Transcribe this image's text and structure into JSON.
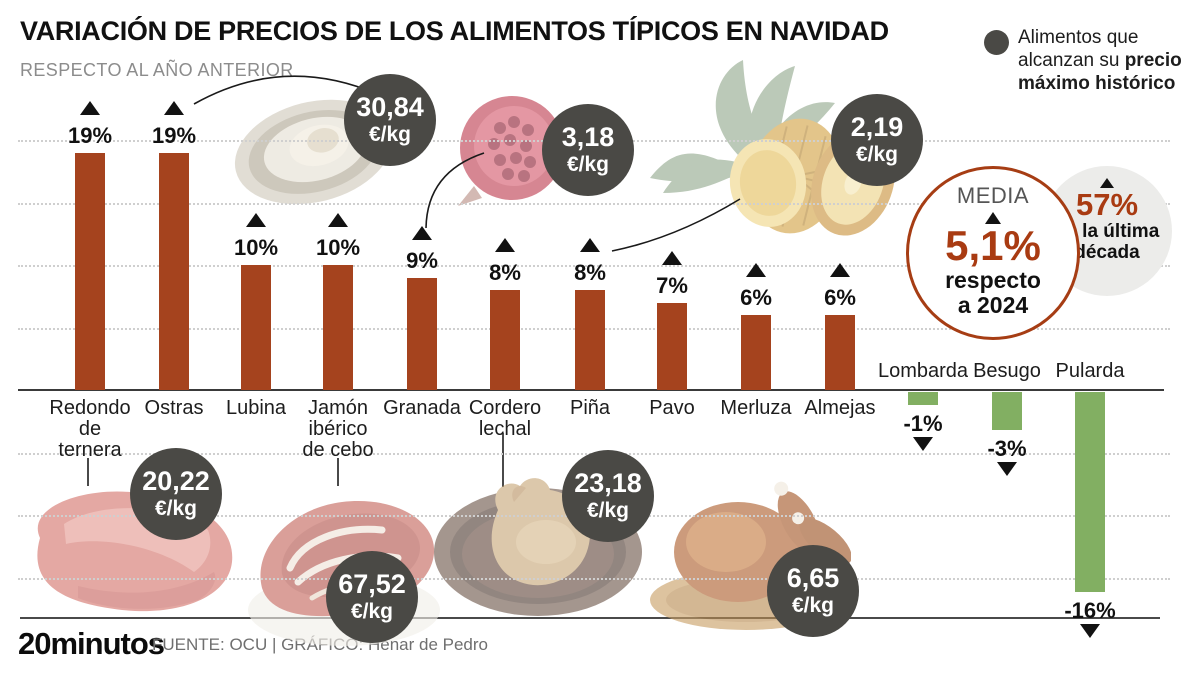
{
  "header": {
    "title": "VARIACIÓN DE PRECIOS DE LOS ALIMENTOS TÍPICOS EN NAVIDAD",
    "subtitle": "RESPECTO AL AÑO ANTERIOR"
  },
  "legend": {
    "text_normal": "Alimentos que alcanzan su ",
    "text_bold": "precio máximo histórico"
  },
  "media_circle": {
    "label": "MEDIA",
    "value": "5,1%",
    "caption_line1": "respecto",
    "caption_line2": "a 2024"
  },
  "decade_circle": {
    "value": "57%",
    "caption_line1": "en la última",
    "caption_line2": "década"
  },
  "footer": {
    "logo": "20minutos",
    "source": "FUENTE: OCU  |  GRÁFICO: Henar de Pedro"
  },
  "colors": {
    "positive_bar": "#a5431e",
    "negative_bar": "#82af62",
    "badge_bg": "#4a4945",
    "accent_rust": "#a93b12"
  },
  "chart_data": {
    "type": "bar",
    "title": "Variación de precios de los alimentos típicos en Navidad",
    "subtitle": "Respecto al año anterior",
    "unit": "%",
    "ylim": [
      -16,
      20
    ],
    "grid": true,
    "gridlines_pct": [
      20,
      15,
      10,
      5,
      -5,
      -10,
      -15
    ],
    "categories": [
      "Redondo de ternera",
      "Ostras",
      "Lubina",
      "Jamón ibérico de cebo",
      "Granada",
      "Cordero lechal",
      "Piña",
      "Pavo",
      "Merluza",
      "Almejas",
      "Lombarda",
      "Besugo",
      "Pularda"
    ],
    "values": [
      19,
      19,
      10,
      10,
      9,
      8,
      8,
      7,
      6,
      6,
      -1,
      -3,
      -16
    ],
    "label_lines": [
      [
        "Redondo",
        "de",
        "ternera"
      ],
      [
        "Ostras"
      ],
      [
        "Lubina"
      ],
      [
        "Jamón",
        "ibérico",
        "de cebo"
      ],
      [
        "Granada"
      ],
      [
        "Cordero",
        "lechal"
      ],
      [
        "Piña"
      ],
      [
        "Pavo"
      ],
      [
        "Merluza"
      ],
      [
        "Almejas"
      ],
      [
        "Lombarda"
      ],
      [
        "Besugo"
      ],
      [
        "Pularda"
      ]
    ],
    "average": {
      "label": "MEDIA",
      "value_pct": 5.1,
      "caption": "respecto a 2024"
    },
    "decade_increase": {
      "value_pct": 57,
      "caption": "en la última década"
    },
    "price_badges": [
      {
        "food": "Ostras",
        "price": "30,84",
        "unit": "€/kg"
      },
      {
        "food": "Granada",
        "price": "3,18",
        "unit": "€/kg"
      },
      {
        "food": "Piña",
        "price": "2,19",
        "unit": "€/kg"
      },
      {
        "food": "Redondo de ternera",
        "price": "20,22",
        "unit": "€/kg"
      },
      {
        "food": "Jamón ibérico de cebo",
        "price": "67,52",
        "unit": "€/kg"
      },
      {
        "food": "Cordero lechal",
        "price": "23,18",
        "unit": "€/kg"
      },
      {
        "food": "Pavo",
        "price": "6,65",
        "unit": "€/kg"
      }
    ]
  }
}
